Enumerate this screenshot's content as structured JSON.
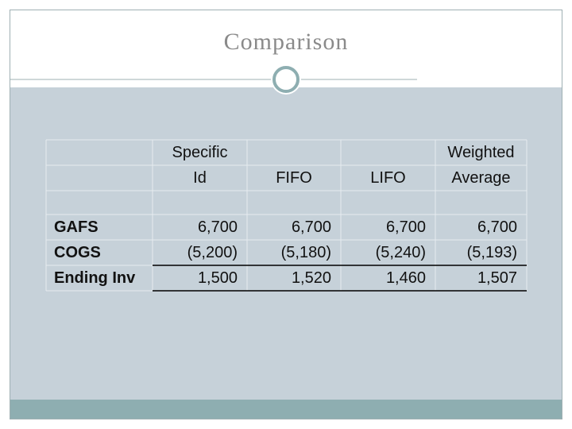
{
  "title": "Comparison",
  "table": {
    "columns": [
      [
        "Specific",
        "Id"
      ],
      [
        "FIFO"
      ],
      [
        "LIFO"
      ],
      [
        "Weighted",
        "Average"
      ]
    ],
    "rows": [
      {
        "label": "GAFS",
        "cells": [
          "6,700",
          "6,700",
          "6,700",
          "6,700"
        ]
      },
      {
        "label": "COGS",
        "cells": [
          "(5,200)",
          "(5,180)",
          "(5,240)",
          "(5,193)"
        ]
      },
      {
        "label": "Ending Inv",
        "cells": [
          "1,500",
          "1,520",
          "1,460",
          "1,507"
        ]
      }
    ]
  }
}
